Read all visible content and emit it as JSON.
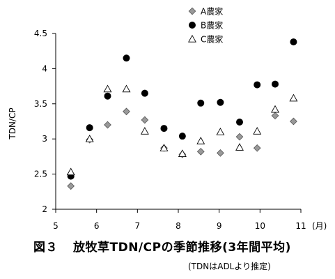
{
  "chart_data": {
    "type": "scatter",
    "title": "放牧草TDN/CPの季節推移(3年間平均)",
    "figure_number": "図３",
    "note": "(TDNはADLより推定)",
    "xlabel": "(月)",
    "ylabel": "TDN/CP",
    "xlim": [
      5,
      11
    ],
    "ylim": [
      2,
      4.5
    ],
    "x_ticks": [
      "5",
      "6",
      "7",
      "8",
      "9",
      "10",
      "11"
    ],
    "y_ticks": [
      "2",
      "2.5",
      "3",
      "3.5",
      "4",
      "4.5"
    ],
    "grid": false,
    "legend_position": "top-center",
    "series": [
      {
        "name": "A農家",
        "marker": "diamond",
        "color": "#999999",
        "points": [
          [
            5.37,
            2.33
          ],
          [
            5.83,
            2.99
          ],
          [
            6.27,
            3.2
          ],
          [
            6.73,
            3.39
          ],
          [
            7.18,
            3.27
          ],
          [
            7.65,
            2.87
          ],
          [
            8.1,
            2.78
          ],
          [
            8.55,
            2.82
          ],
          [
            9.03,
            2.8
          ],
          [
            9.5,
            3.03
          ],
          [
            9.93,
            2.87
          ],
          [
            10.37,
            3.33
          ],
          [
            10.82,
            3.25
          ]
        ]
      },
      {
        "name": "B農家",
        "marker": "circle",
        "color": "#000000",
        "points": [
          [
            5.37,
            2.47
          ],
          [
            5.83,
            3.16
          ],
          [
            6.27,
            3.61
          ],
          [
            6.73,
            4.15
          ],
          [
            7.18,
            3.65
          ],
          [
            7.65,
            3.15
          ],
          [
            8.1,
            3.04
          ],
          [
            8.55,
            3.51
          ],
          [
            9.03,
            3.52
          ],
          [
            9.5,
            3.24
          ],
          [
            9.93,
            3.77
          ],
          [
            10.37,
            3.78
          ],
          [
            10.82,
            4.38
          ]
        ]
      },
      {
        "name": "C農家",
        "marker": "triangle",
        "color": "#ffffff",
        "points": [
          [
            5.37,
            2.53
          ],
          [
            5.83,
            3.0
          ],
          [
            6.27,
            3.71
          ],
          [
            6.73,
            3.71
          ],
          [
            7.18,
            3.11
          ],
          [
            7.65,
            2.87
          ],
          [
            8.1,
            2.79
          ],
          [
            8.55,
            2.97
          ],
          [
            9.03,
            3.1
          ],
          [
            9.5,
            2.88
          ],
          [
            9.93,
            3.11
          ],
          [
            10.37,
            3.42
          ],
          [
            10.82,
            3.58
          ]
        ]
      }
    ]
  }
}
